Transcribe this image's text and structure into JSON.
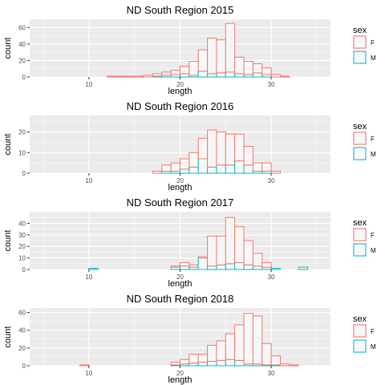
{
  "x_axis_label": "length",
  "y_axis_label": "count",
  "legend_title": "sex",
  "legend_labels": [
    "F",
    "M"
  ],
  "colors": {
    "F": "#F8766D",
    "M": "#00BFC4",
    "panel_bg": "#EBEBEB",
    "grid": "#FFFFFF",
    "bar_fill": "#F7F7F7"
  },
  "chart_data": [
    {
      "type": "bar",
      "title": "ND South Region 2015",
      "xlabel": "length",
      "ylabel": "count",
      "xlim": [
        3.5,
        36.5
      ],
      "ylim": [
        0,
        70
      ],
      "x_ticks": [
        10,
        20,
        30
      ],
      "y_ticks": [
        0,
        20,
        40,
        60
      ],
      "grid": true,
      "legend_position": "right",
      "stacked": true,
      "bin_starts": [
        6,
        7,
        8,
        9,
        10,
        11,
        12,
        13,
        14,
        15,
        16,
        17,
        18,
        19,
        20,
        21,
        22,
        23,
        24,
        25,
        26,
        27,
        28,
        29,
        30,
        31,
        32,
        33,
        34
      ],
      "series": [
        {
          "name": "F",
          "values": [
            0,
            0,
            0,
            0,
            0,
            0,
            1,
            1,
            1,
            1,
            2,
            3,
            4,
            5,
            9,
            17,
            26,
            43,
            40,
            59,
            20,
            16,
            11,
            8,
            3,
            1,
            0,
            0,
            0
          ]
        },
        {
          "name": "M",
          "values": [
            0,
            0,
            0,
            0,
            0,
            0,
            0,
            0,
            0,
            0,
            0,
            1,
            2,
            3,
            4,
            2,
            7,
            4,
            5,
            6,
            4,
            3,
            5,
            3,
            0,
            0,
            0,
            0,
            0
          ]
        }
      ]
    },
    {
      "type": "bar",
      "title": "ND South Region 2016",
      "xlabel": "length",
      "ylabel": "count",
      "xlim": [
        3.5,
        36.5
      ],
      "ylim": [
        0,
        28
      ],
      "x_ticks": [
        10,
        20,
        30
      ],
      "y_ticks": [
        0,
        10,
        20
      ],
      "grid": true,
      "legend_position": "right",
      "stacked": true,
      "bin_starts": [
        6,
        7,
        8,
        9,
        10,
        11,
        12,
        13,
        14,
        15,
        16,
        17,
        18,
        19,
        20,
        21,
        22,
        23,
        24,
        25,
        26,
        27,
        28,
        29,
        30,
        31,
        32,
        33,
        34
      ],
      "series": [
        {
          "name": "F",
          "values": [
            0,
            0,
            0,
            0,
            0,
            0,
            0,
            0,
            0,
            0,
            0,
            1,
            3,
            4,
            5,
            7,
            10,
            18,
            16,
            15,
            13,
            9,
            4,
            4,
            1,
            0,
            0,
            0,
            0
          ]
        },
        {
          "name": "M",
          "values": [
            0,
            0,
            0,
            0,
            0,
            0,
            0,
            0,
            0,
            0,
            0,
            0,
            1,
            1,
            2,
            3,
            7,
            3,
            4,
            4,
            6,
            4,
            1,
            1,
            0,
            0,
            0,
            0,
            0
          ]
        }
      ]
    },
    {
      "type": "bar",
      "title": "ND South Region 2017",
      "xlabel": "length",
      "ylabel": "count",
      "xlim": [
        3.5,
        36.5
      ],
      "ylim": [
        0,
        50
      ],
      "x_ticks": [
        10,
        20,
        30
      ],
      "y_ticks": [
        0,
        10,
        20,
        30,
        40
      ],
      "grid": true,
      "legend_position": "right",
      "stacked": true,
      "bin_starts": [
        6,
        7,
        8,
        9,
        10,
        11,
        12,
        13,
        14,
        15,
        16,
        17,
        18,
        19,
        20,
        21,
        22,
        23,
        24,
        25,
        26,
        27,
        28,
        29,
        30,
        31,
        32,
        33,
        34
      ],
      "series": [
        {
          "name": "F",
          "values": [
            0,
            0,
            0,
            0,
            0,
            0,
            0,
            0,
            0,
            0,
            0,
            0,
            0,
            1,
            3,
            2,
            1,
            26,
            25,
            40,
            31,
            21,
            11,
            4,
            0,
            0,
            0,
            0,
            0
          ]
        },
        {
          "name": "M",
          "values": [
            0,
            0,
            0,
            0,
            1,
            0,
            0,
            0,
            0,
            0,
            0,
            0,
            0,
            2,
            3,
            2,
            10,
            3,
            4,
            5,
            6,
            4,
            3,
            2,
            1,
            0,
            0,
            2,
            0
          ]
        }
      ]
    },
    {
      "type": "bar",
      "title": "ND South Region 2018",
      "xlabel": "length",
      "ylabel": "count",
      "xlim": [
        3.5,
        36.5
      ],
      "ylim": [
        0,
        65
      ],
      "x_ticks": [
        10,
        20,
        30
      ],
      "y_ticks": [
        0,
        20,
        40,
        60
      ],
      "grid": true,
      "legend_position": "right",
      "stacked": true,
      "bin_starts": [
        6,
        7,
        8,
        9,
        10,
        11,
        12,
        13,
        14,
        15,
        16,
        17,
        18,
        19,
        20,
        21,
        22,
        23,
        24,
        25,
        26,
        27,
        28,
        29,
        30,
        31,
        32,
        33,
        34
      ],
      "series": [
        {
          "name": "F",
          "values": [
            0,
            0,
            0,
            1,
            0,
            0,
            0,
            0,
            0,
            0,
            0,
            0,
            0,
            3,
            5,
            10,
            9,
            18,
            22,
            29,
            40,
            57,
            54,
            24,
            10,
            2,
            1,
            0,
            0
          ]
        },
        {
          "name": "M",
          "values": [
            0,
            0,
            0,
            0,
            0,
            0,
            0,
            0,
            0,
            0,
            0,
            0,
            0,
            1,
            2,
            3,
            4,
            5,
            6,
            7,
            6,
            2,
            2,
            1,
            1,
            0,
            0,
            0,
            0
          ]
        }
      ]
    }
  ]
}
